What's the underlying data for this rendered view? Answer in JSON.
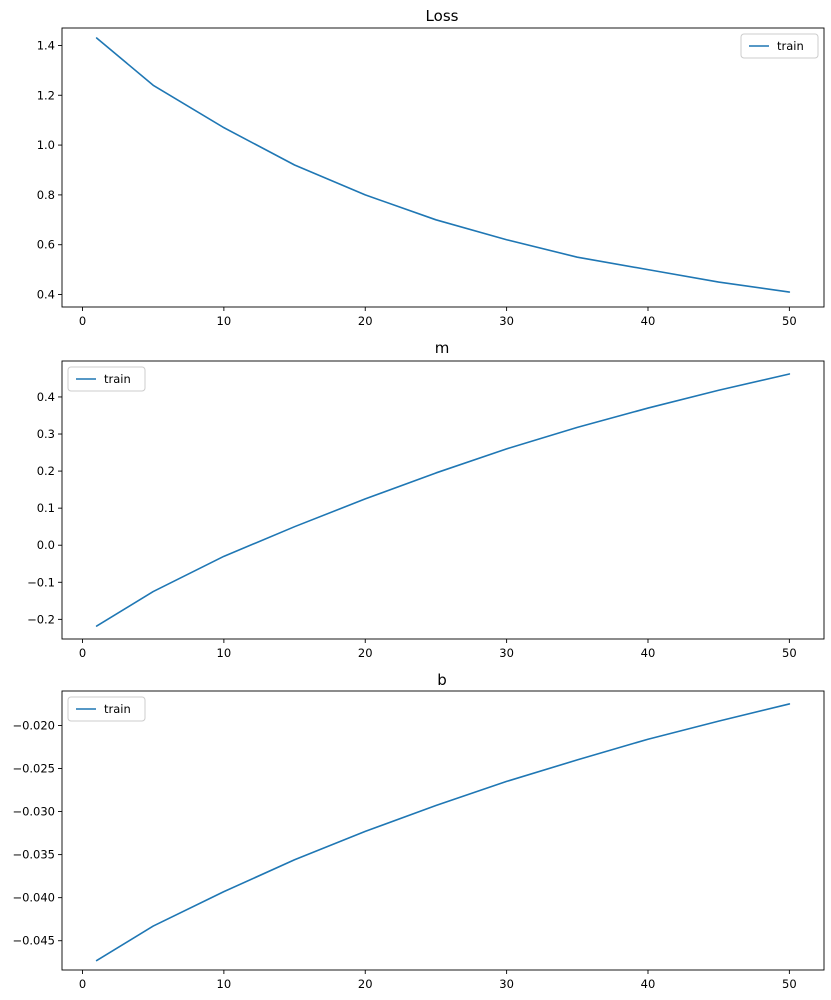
{
  "colors": {
    "line": "#1f77b4",
    "axes": "#000000",
    "legend_border": "#cccccc",
    "background": "#ffffff"
  },
  "chart_data": [
    {
      "type": "line",
      "title": "Loss",
      "xlabel": "",
      "ylabel": "",
      "grid": false,
      "legend_position": "top-right",
      "xlim": [
        -1.45,
        52.45
      ],
      "ylim": [
        0.35,
        1.47
      ],
      "xticks": [
        0,
        10,
        20,
        30,
        40,
        50
      ],
      "xtick_labels": [
        "0",
        "10",
        "20",
        "30",
        "40",
        "50"
      ],
      "yticks": [
        0.4,
        0.6,
        0.8,
        1.0,
        1.2,
        1.4
      ],
      "ytick_labels": [
        "0.4",
        "0.6",
        "0.8",
        "1.0",
        "1.2",
        "1.4"
      ],
      "series": [
        {
          "name": "train",
          "x": [
            1,
            5,
            10,
            15,
            20,
            25,
            30,
            35,
            40,
            45,
            50
          ],
          "y": [
            1.43,
            1.24,
            1.07,
            0.92,
            0.8,
            0.7,
            0.62,
            0.55,
            0.5,
            0.45,
            0.41
          ]
        }
      ]
    },
    {
      "type": "line",
      "title": "m",
      "xlabel": "",
      "ylabel": "",
      "grid": false,
      "legend_position": "top-left",
      "xlim": [
        -1.45,
        52.45
      ],
      "ylim": [
        -0.253,
        0.497
      ],
      "xticks": [
        0,
        10,
        20,
        30,
        40,
        50
      ],
      "xtick_labels": [
        "0",
        "10",
        "20",
        "30",
        "40",
        "50"
      ],
      "yticks": [
        -0.2,
        -0.1,
        0.0,
        0.1,
        0.2,
        0.3,
        0.4
      ],
      "ytick_labels": [
        "−0.2",
        "−0.1",
        "0.0",
        "0.1",
        "0.2",
        "0.3",
        "0.4"
      ],
      "series": [
        {
          "name": "train",
          "x": [
            1,
            5,
            10,
            15,
            20,
            25,
            30,
            35,
            40,
            45,
            50
          ],
          "y": [
            -0.218,
            -0.125,
            -0.03,
            0.05,
            0.125,
            0.195,
            0.26,
            0.318,
            0.37,
            0.418,
            0.462
          ]
        }
      ]
    },
    {
      "type": "line",
      "title": "b",
      "xlabel": "",
      "ylabel": "",
      "grid": false,
      "legend_position": "top-left",
      "xlim": [
        -1.45,
        52.45
      ],
      "ylim": [
        -0.0484,
        -0.016
      ],
      "xticks": [
        0,
        10,
        20,
        30,
        40,
        50
      ],
      "xtick_labels": [
        "0",
        "10",
        "20",
        "30",
        "40",
        "50"
      ],
      "yticks": [
        -0.045,
        -0.04,
        -0.035,
        -0.03,
        -0.025,
        -0.02
      ],
      "ytick_labels": [
        "−0.045",
        "−0.040",
        "−0.035",
        "−0.030",
        "−0.025",
        "−0.020"
      ],
      "series": [
        {
          "name": "train",
          "x": [
            1,
            5,
            10,
            15,
            20,
            25,
            30,
            35,
            40,
            45,
            50
          ],
          "y": [
            -0.0473,
            -0.0433,
            -0.0393,
            -0.0356,
            -0.0323,
            -0.0293,
            -0.0265,
            -0.024,
            -0.0216,
            -0.0195,
            -0.0175
          ]
        }
      ]
    }
  ]
}
